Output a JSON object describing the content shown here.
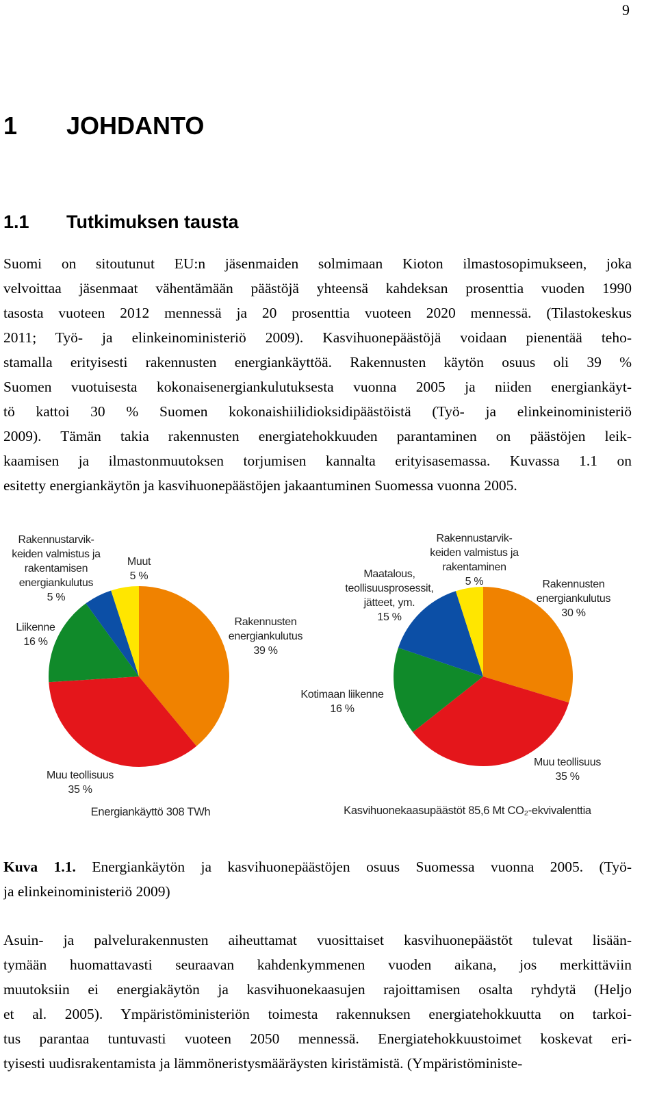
{
  "page_number": "9",
  "heading": {
    "number": "1",
    "title": "JOHDANTO"
  },
  "subheading": {
    "number": "1.1",
    "title": "Tutkimuksen tausta"
  },
  "paragraphs": [
    {
      "lines": [
        "Suomi on sitoutunut EU:n jäsenmaiden solmimaan Kioton ilmastosopimukseen, joka",
        "velvoittaa jäsenmaat vähentämään päästöjä yhteensä kahdeksan prosenttia vuoden 1990",
        "tasosta vuoteen 2012 mennessä ja 20 prosenttia vuoteen 2020 mennessä. (Tilastokeskus",
        "2011; Työ- ja elinkeinoministeriö 2009). Kasvihuonepäästöjä voidaan pienentää teho-",
        "stamalla erityisesti rakennusten energiankäyttöä. Rakennusten käytön osuus oli 39 %",
        "Suomen vuotuisesta kokonaisenergiankulutuksesta vuonna 2005 ja niiden energiankäyt-",
        "tö kattoi 30 % Suomen kokonaishiilidioksidipäästöistä (Työ- ja elinkeinoministeriö",
        "2009). Tämän takia rakennusten energiatehokkuuden parantaminen on päästöjen leik-",
        "kaamisen ja ilmastonmuutoksen torjumisen kannalta erityisasemassa. Kuvassa 1.1 on",
        "esitetty energiankäytön ja kasvihuonepäästöjen jakaantuminen Suomessa vuonna 2005."
      ]
    },
    {
      "lines": [
        "Asuin- ja palvelurakennusten aiheuttamat vuosittaiset kasvihuonepäästöt tulevat lisään-",
        "tymään huomattavasti seuraavan kahdenkymmenen vuoden aikana, jos merkittäviin",
        "muutoksiin ei energiakäytön ja kasvihuonekaasujen rajoittamisen osalta ryhdytä (Heljo",
        "et al. 2005). Ympäristöministeriön toimesta rakennuksen energiatehokkuutta on tarkoi-",
        "tus parantaa tuntuvasti vuoteen 2050 mennessä. Energiatehokkuustoimet koskevat eri-",
        "tyisesti uudisrakentamista ja lämmöneristysmääräysten kiristämistä. (Ympäristöministe-"
      ]
    }
  ],
  "caption": {
    "label": "Kuva 1.1.",
    "lines": [
      "Energiankäytön ja kasvihuonepäästöjen osuus Suomessa vuonna 2005. (Työ-",
      "ja elinkeinoministeriö 2009)"
    ]
  },
  "chart_data": [
    {
      "type": "pie",
      "note": "Energiankäyttö 308 TWh",
      "categories": [
        "Rakennusten\nenergiankulutus",
        "Muu teollisuus",
        "Liikenne",
        "Rakennustarvik-\nkeiden valmistus ja\nrakentamisen\nenergiankulutus",
        "Muut"
      ],
      "values": [
        39,
        35,
        16,
        5,
        5
      ],
      "value_labels": [
        "39 %",
        "35 %",
        "16 %",
        "5 %",
        "5 %"
      ],
      "colors": [
        "#f08200",
        "#e4161b",
        "#108a2a",
        "#0c4fa6",
        "#ffe600"
      ]
    },
    {
      "type": "pie",
      "note": "Kasvihuonekaasupäästöt 85,6 Mt CO₂-ekvivalenttia",
      "categories": [
        "Rakennusten\nenergiankulutus",
        "Muu teollisuus",
        "Kotimaan liikenne",
        "Maatalous,\nteollisuusprosessit,\njätteet, ym.",
        "Rakennustarvik-\nkeiden valmistus ja\nrakentaminen"
      ],
      "values": [
        30,
        35,
        16,
        15,
        5
      ],
      "value_labels": [
        "30 %",
        "35 %",
        "16 %",
        "15 %",
        "5 %"
      ],
      "colors": [
        "#f08200",
        "#e4161b",
        "#108a2a",
        "#0c4fa6",
        "#ffe600"
      ]
    }
  ]
}
